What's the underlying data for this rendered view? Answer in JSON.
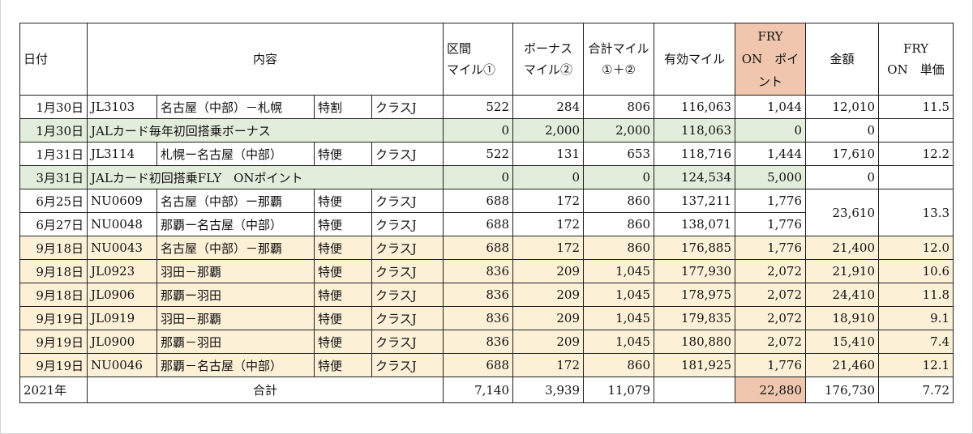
{
  "header": {
    "date": "日付",
    "content": "内容",
    "segment_miles": [
      "区間",
      "マイル①"
    ],
    "bonus": [
      "ボーナス",
      "マイル②"
    ],
    "total_miles": [
      "合計マイル",
      "①＋②"
    ],
    "valid_miles": "有効マイル",
    "fry_points": [
      "FRY",
      "ON　ポイ",
      "ント"
    ],
    "amount": "金額",
    "fry_unit": [
      "FRY",
      "ON　単価"
    ]
  },
  "rows": [
    {
      "date": "1月30日",
      "flight": "JL3103",
      "route": "名古屋（中部）－札幌",
      "fare": "特割",
      "cls": "クラスJ",
      "seg": "522",
      "bonus": "284",
      "total": "806",
      "valid": "116,063",
      "fop": "1,044",
      "amount": "12,010",
      "unit": "11.5"
    },
    {
      "date": "1月30日",
      "desc": "JALカード毎年初回搭乗ボーナス",
      "seg": "0",
      "bonus": "2,000",
      "total": "2,000",
      "valid": "118,063",
      "fop": "0",
      "amount": "0",
      "unit": ""
    },
    {
      "date": "1月31日",
      "flight": "JL3114",
      "route": "札幌ー名古屋（中部）",
      "fare": "特便",
      "cls": "クラスJ",
      "seg": "522",
      "bonus": "131",
      "total": "653",
      "valid": "118,716",
      "fop": "1,444",
      "amount": "17,610",
      "unit": "12.2"
    },
    {
      "date": "3月31日",
      "desc": "JALカード初回搭乗FLY　ONポイント",
      "seg": "0",
      "bonus": "0",
      "total": "0",
      "valid": "124,534",
      "fop": "5,000",
      "amount": "0",
      "unit": ""
    },
    {
      "date": "6月25日",
      "flight": "NU0609",
      "route": "名古屋（中部）ー那覇",
      "fare": "特便",
      "cls": "クラスJ",
      "seg": "688",
      "bonus": "172",
      "total": "860",
      "valid": "137,211",
      "fop": "1,776"
    },
    {
      "date": "6月27日",
      "flight": "NU0048",
      "route": "那覇ー名古屋（中部）",
      "fare": "特便",
      "cls": "クラスJ",
      "seg": "688",
      "bonus": "172",
      "total": "860",
      "valid": "138,071",
      "fop": "1,776"
    },
    {
      "date": "9月18日",
      "flight": "NU0043",
      "route": "名古屋（中部）－那覇",
      "fare": "特便",
      "cls": "クラスJ",
      "seg": "688",
      "bonus": "172",
      "total": "860",
      "valid": "176,885",
      "fop": "1,776",
      "amount": "21,400",
      "unit": "12.0"
    },
    {
      "date": "9月18日",
      "flight": "JL0923",
      "route": "羽田－那覇",
      "fare": "特便",
      "cls": "クラスJ",
      "seg": "836",
      "bonus": "209",
      "total": "1,045",
      "valid": "177,930",
      "fop": "2,072",
      "amount": "21,910",
      "unit": "10.6"
    },
    {
      "date": "9月18日",
      "flight": "JL0906",
      "route": "那覇ー羽田",
      "fare": "特便",
      "cls": "クラスJ",
      "seg": "836",
      "bonus": "209",
      "total": "1,045",
      "valid": "178,975",
      "fop": "2,072",
      "amount": "24,410",
      "unit": "11.8"
    },
    {
      "date": "9月19日",
      "flight": "JL0919",
      "route": "羽田－那覇",
      "fare": "特便",
      "cls": "クラスJ",
      "seg": "836",
      "bonus": "209",
      "total": "1,045",
      "valid": "179,835",
      "fop": "2,072",
      "amount": "18,910",
      "unit": "9.1"
    },
    {
      "date": "9月19日",
      "flight": "JL0900",
      "route": "那覇－羽田",
      "fare": "特便",
      "cls": "クラスJ",
      "seg": "836",
      "bonus": "209",
      "total": "1,045",
      "valid": "180,880",
      "fop": "2,072",
      "amount": "15,410",
      "unit": "7.4"
    },
    {
      "date": "9月19日",
      "flight": "NU0046",
      "route": "那覇－名古屋（中部）",
      "fare": "特便",
      "cls": "クラスJ",
      "seg": "688",
      "bonus": "172",
      "total": "860",
      "valid": "181,925",
      "fop": "1,776",
      "amount": "21,460",
      "unit": "12.1"
    }
  ],
  "merged_june": {
    "amount": "23,610",
    "unit": "13.3"
  },
  "total": {
    "year": "2021年",
    "label": "合計",
    "seg": "7,140",
    "bonus": "3,939",
    "total": "11,079",
    "fop": "22,880",
    "amount": "176,730",
    "unit": "7.72"
  },
  "colors": {
    "green": "#e3eddc",
    "yellow": "#fcf1d7",
    "peach": "#f0c7ae"
  }
}
